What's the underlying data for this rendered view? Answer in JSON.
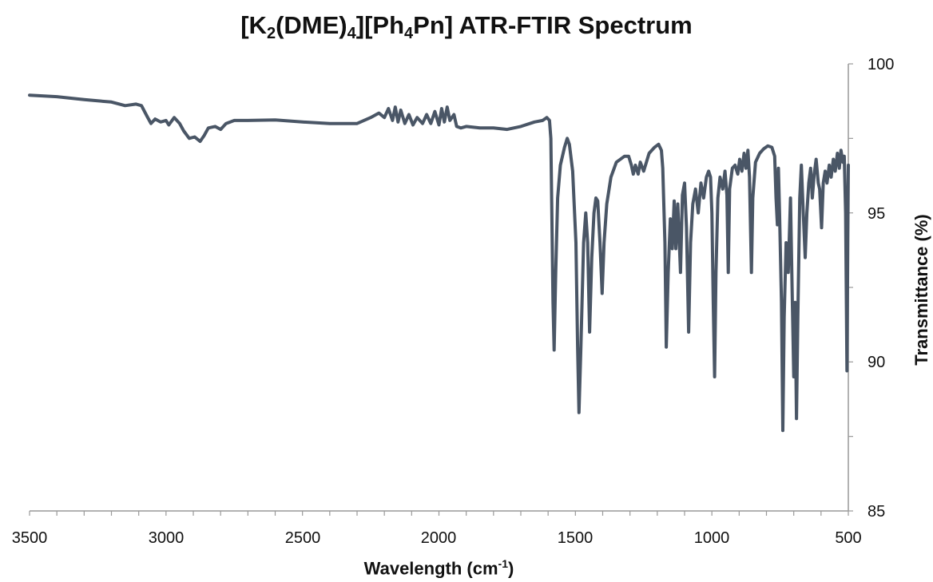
{
  "chart_data": {
    "type": "line",
    "title": {
      "parts": [
        "[K",
        "2",
        "(DME)",
        "4",
        "][Ph",
        "4",
        "Pn] ATR-FTIR Spectrum"
      ]
    },
    "xlabel": {
      "text": "Wavelength (cm",
      "sup": "-1",
      "close": ")"
    },
    "ylabel": "Transmittance (%)",
    "xlim": [
      3500,
      500
    ],
    "ylim": [
      85,
      100
    ],
    "x_reversed": true,
    "x_ticks": [
      "3500",
      "3000",
      "2500",
      "2000",
      "1500",
      "1000",
      "500"
    ],
    "y_ticks": [
      "100",
      "95",
      "90",
      "85"
    ],
    "grid": false,
    "line_color": "#4a5666",
    "series": [
      {
        "values": [
          [
            3500,
            98.95
          ],
          [
            3400,
            98.9
          ],
          [
            3300,
            98.8
          ],
          [
            3200,
            98.72
          ],
          [
            3150,
            98.6
          ],
          [
            3110,
            98.65
          ],
          [
            3090,
            98.6
          ],
          [
            3070,
            98.25
          ],
          [
            3055,
            98.0
          ],
          [
            3040,
            98.15
          ],
          [
            3020,
            98.05
          ],
          [
            3000,
            98.1
          ],
          [
            2990,
            97.95
          ],
          [
            2970,
            98.2
          ],
          [
            2950,
            98.0
          ],
          [
            2935,
            97.75
          ],
          [
            2915,
            97.5
          ],
          [
            2895,
            97.55
          ],
          [
            2875,
            97.4
          ],
          [
            2860,
            97.6
          ],
          [
            2845,
            97.85
          ],
          [
            2820,
            97.9
          ],
          [
            2800,
            97.8
          ],
          [
            2780,
            98.0
          ],
          [
            2750,
            98.1
          ],
          [
            2700,
            98.1
          ],
          [
            2600,
            98.12
          ],
          [
            2500,
            98.05
          ],
          [
            2400,
            98.0
          ],
          [
            2300,
            98.0
          ],
          [
            2250,
            98.2
          ],
          [
            2220,
            98.35
          ],
          [
            2200,
            98.2
          ],
          [
            2185,
            98.5
          ],
          [
            2170,
            98.1
          ],
          [
            2160,
            98.55
          ],
          [
            2150,
            98.05
          ],
          [
            2140,
            98.45
          ],
          [
            2125,
            98.0
          ],
          [
            2110,
            98.3
          ],
          [
            2095,
            97.95
          ],
          [
            2080,
            98.2
          ],
          [
            2060,
            98.0
          ],
          [
            2045,
            98.3
          ],
          [
            2030,
            98.0
          ],
          [
            2015,
            98.4
          ],
          [
            2000,
            97.95
          ],
          [
            1990,
            98.5
          ],
          [
            1980,
            98.05
          ],
          [
            1970,
            98.55
          ],
          [
            1960,
            98.1
          ],
          [
            1945,
            98.3
          ],
          [
            1935,
            97.9
          ],
          [
            1920,
            97.85
          ],
          [
            1900,
            97.9
          ],
          [
            1850,
            97.85
          ],
          [
            1800,
            97.85
          ],
          [
            1750,
            97.8
          ],
          [
            1700,
            97.9
          ],
          [
            1650,
            98.05
          ],
          [
            1620,
            98.1
          ],
          [
            1605,
            98.2
          ],
          [
            1595,
            98.1
          ],
          [
            1590,
            97.5
          ],
          [
            1582,
            92.0
          ],
          [
            1578,
            90.4
          ],
          [
            1572,
            93.0
          ],
          [
            1565,
            95.5
          ],
          [
            1555,
            96.6
          ],
          [
            1540,
            97.2
          ],
          [
            1530,
            97.5
          ],
          [
            1522,
            97.3
          ],
          [
            1510,
            96.4
          ],
          [
            1498,
            94.0
          ],
          [
            1492,
            90.5
          ],
          [
            1487,
            88.3
          ],
          [
            1480,
            90.5
          ],
          [
            1470,
            94.0
          ],
          [
            1462,
            95.0
          ],
          [
            1455,
            94.0
          ],
          [
            1448,
            91.0
          ],
          [
            1440,
            93.5
          ],
          [
            1432,
            95.0
          ],
          [
            1425,
            95.5
          ],
          [
            1418,
            95.4
          ],
          [
            1410,
            94.0
          ],
          [
            1402,
            92.3
          ],
          [
            1395,
            94.0
          ],
          [
            1385,
            95.3
          ],
          [
            1370,
            96.2
          ],
          [
            1350,
            96.7
          ],
          [
            1320,
            96.9
          ],
          [
            1305,
            96.9
          ],
          [
            1295,
            96.6
          ],
          [
            1288,
            96.3
          ],
          [
            1280,
            96.6
          ],
          [
            1270,
            96.3
          ],
          [
            1262,
            96.7
          ],
          [
            1250,
            96.4
          ],
          [
            1240,
            96.7
          ],
          [
            1230,
            97.0
          ],
          [
            1210,
            97.2
          ],
          [
            1195,
            97.3
          ],
          [
            1185,
            97.1
          ],
          [
            1180,
            96.5
          ],
          [
            1172,
            94.0
          ],
          [
            1167,
            90.5
          ],
          [
            1160,
            93.0
          ],
          [
            1152,
            94.8
          ],
          [
            1145,
            93.8
          ],
          [
            1138,
            95.4
          ],
          [
            1132,
            93.8
          ],
          [
            1125,
            95.3
          ],
          [
            1115,
            93.0
          ],
          [
            1108,
            95.6
          ],
          [
            1100,
            96.0
          ],
          [
            1093,
            94.5
          ],
          [
            1085,
            91.0
          ],
          [
            1078,
            94.0
          ],
          [
            1070,
            95.3
          ],
          [
            1060,
            95.8
          ],
          [
            1050,
            95.0
          ],
          [
            1040,
            96.0
          ],
          [
            1030,
            95.5
          ],
          [
            1020,
            96.2
          ],
          [
            1012,
            96.4
          ],
          [
            1005,
            96.2
          ],
          [
            1000,
            95.0
          ],
          [
            995,
            92.0
          ],
          [
            990,
            89.5
          ],
          [
            985,
            93.0
          ],
          [
            978,
            95.5
          ],
          [
            970,
            96.2
          ],
          [
            960,
            95.8
          ],
          [
            952,
            96.4
          ],
          [
            945,
            95.6
          ],
          [
            940,
            93.0
          ],
          [
            935,
            95.8
          ],
          [
            925,
            96.5
          ],
          [
            915,
            96.6
          ],
          [
            905,
            96.3
          ],
          [
            898,
            96.8
          ],
          [
            890,
            96.4
          ],
          [
            882,
            97.0
          ],
          [
            875,
            96.5
          ],
          [
            868,
            97.1
          ],
          [
            862,
            96.2
          ],
          [
            855,
            93.0
          ],
          [
            850,
            95.5
          ],
          [
            840,
            96.7
          ],
          [
            825,
            97.0
          ],
          [
            810,
            97.15
          ],
          [
            795,
            97.25
          ],
          [
            780,
            97.2
          ],
          [
            770,
            96.9
          ],
          [
            765,
            95.5
          ],
          [
            760,
            94.6
          ],
          [
            756,
            96.5
          ],
          [
            752,
            95.0
          ],
          [
            745,
            92.0
          ],
          [
            740,
            87.7
          ],
          [
            735,
            91.5
          ],
          [
            728,
            94.0
          ],
          [
            720,
            93.0
          ],
          [
            712,
            95.5
          ],
          [
            706,
            92.5
          ],
          [
            700,
            89.5
          ],
          [
            695,
            92.0
          ],
          [
            690,
            88.1
          ],
          [
            685,
            91.5
          ],
          [
            678,
            95.5
          ],
          [
            672,
            96.6
          ],
          [
            665,
            95.0
          ],
          [
            658,
            93.5
          ],
          [
            652,
            95.0
          ],
          [
            645,
            96.0
          ],
          [
            638,
            96.5
          ],
          [
            632,
            95.5
          ],
          [
            625,
            96.3
          ],
          [
            618,
            96.8
          ],
          [
            610,
            96.0
          ],
          [
            605,
            95.8
          ],
          [
            598,
            94.5
          ],
          [
            592,
            96.0
          ],
          [
            585,
            96.4
          ],
          [
            578,
            96.0
          ],
          [
            570,
            96.6
          ],
          [
            563,
            96.2
          ],
          [
            555,
            96.8
          ],
          [
            548,
            96.4
          ],
          [
            540,
            97.0
          ],
          [
            533,
            96.5
          ],
          [
            527,
            97.1
          ],
          [
            520,
            96.7
          ],
          [
            515,
            96.9
          ],
          [
            510,
            95.0
          ],
          [
            505,
            89.7
          ],
          [
            502,
            94.0
          ],
          [
            500,
            96.6
          ]
        ]
      }
    ]
  }
}
